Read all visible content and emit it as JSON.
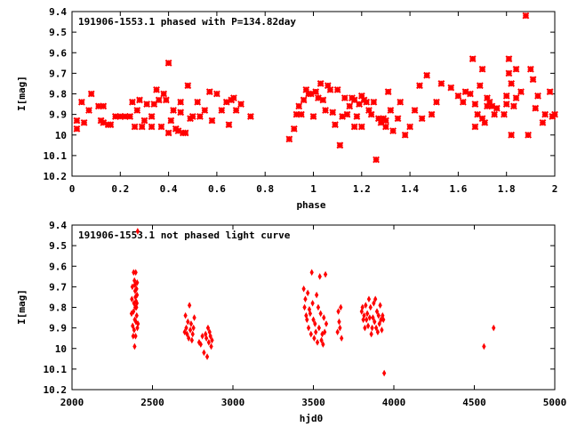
{
  "chart_data": [
    {
      "type": "scatter",
      "title": "191906-1553.1 phased with P=134.82day",
      "xlabel": "phase",
      "ylabel": "I[mag]",
      "xlim": [
        0,
        2
      ],
      "ylim": [
        10.2,
        9.4
      ],
      "y_inverted": true,
      "grid": false,
      "marker_color": "#ff0000",
      "xticks": [
        "0",
        "0.2",
        "0.4",
        "0.6",
        "0.8",
        "1",
        "1.2",
        "1.4",
        "1.6",
        "1.8",
        "2"
      ],
      "yticks": [
        "9.4",
        "9.5",
        "9.6",
        "9.7",
        "9.8",
        "9.9",
        "10",
        "10.1",
        "10.2"
      ],
      "series": [
        {
          "x": [
            0.02,
            0.02,
            0.04,
            0.05,
            0.07,
            0.08,
            0.11,
            0.12,
            0.13,
            0.13,
            0.15,
            0.16,
            0.18,
            0.2,
            0.22,
            0.24,
            0.25,
            0.26,
            0.27,
            0.28,
            0.29,
            0.3,
            0.31,
            0.33,
            0.33,
            0.34,
            0.35,
            0.36,
            0.37,
            0.38,
            0.39,
            0.4,
            0.4,
            0.41,
            0.42,
            0.43,
            0.44,
            0.45,
            0.45,
            0.46,
            0.47,
            0.48,
            0.49,
            0.5,
            0.52,
            0.53,
            0.55,
            0.57,
            0.58,
            0.6,
            0.62,
            0.64,
            0.65,
            0.66,
            0.67,
            0.68,
            0.7,
            0.74,
            0.9,
            0.92,
            0.93,
            0.94,
            0.95,
            0.96,
            0.97,
            0.98,
            0.99,
            1.0,
            1.01,
            1.02,
            1.03,
            1.04,
            1.05,
            1.06,
            1.07,
            1.08,
            1.09,
            1.1,
            1.11,
            1.12,
            1.13,
            1.14,
            1.15,
            1.16,
            1.17,
            1.17,
            1.18,
            1.19,
            1.2,
            1.2,
            1.21,
            1.22,
            1.23,
            1.24,
            1.25,
            1.26,
            1.27,
            1.28,
            1.29,
            1.3,
            1.3,
            1.31,
            1.32,
            1.33,
            1.35,
            1.36,
            1.38,
            1.4,
            1.42,
            1.44,
            1.45,
            1.47,
            1.49,
            1.51,
            1.53,
            1.57,
            1.6,
            1.62,
            1.63,
            1.65,
            1.66,
            1.67,
            1.67,
            1.68,
            1.69,
            1.7,
            1.7,
            1.71,
            1.72,
            1.72,
            1.73,
            1.74,
            1.75,
            1.76,
            1.79,
            1.8,
            1.8,
            1.81,
            1.81,
            1.82,
            1.82,
            1.83,
            1.84,
            1.84,
            1.86,
            1.88,
            1.89,
            1.9,
            1.91,
            1.92,
            1.93,
            1.95,
            1.96,
            1.98,
            1.99,
            2.0
          ],
          "y": [
            9.93,
            9.97,
            9.84,
            9.94,
            9.88,
            9.8,
            9.86,
            9.93,
            9.94,
            9.86,
            9.95,
            9.95,
            9.91,
            9.91,
            9.91,
            9.91,
            9.84,
            9.96,
            9.88,
            9.83,
            9.96,
            9.93,
            9.85,
            9.91,
            9.96,
            9.85,
            9.78,
            9.83,
            9.96,
            9.8,
            9.83,
            9.65,
            9.99,
            9.93,
            9.88,
            9.97,
            9.98,
            9.84,
            9.89,
            9.99,
            9.99,
            9.76,
            9.92,
            9.91,
            9.84,
            9.91,
            9.88,
            9.79,
            9.93,
            9.8,
            9.88,
            9.84,
            9.95,
            9.83,
            9.82,
            9.88,
            9.85,
            9.91,
            10.02,
            9.97,
            9.9,
            9.86,
            9.9,
            9.83,
            9.78,
            9.8,
            9.8,
            9.91,
            9.79,
            9.82,
            9.75,
            9.83,
            9.88,
            9.76,
            9.78,
            9.89,
            9.95,
            9.78,
            10.05,
            9.91,
            9.82,
            9.9,
            9.86,
            9.82,
            9.83,
            9.96,
            9.91,
            9.85,
            9.81,
            9.96,
            9.83,
            9.84,
            9.88,
            9.9,
            9.84,
            10.12,
            9.92,
            9.94,
            9.92,
            9.93,
            9.96,
            9.79,
            9.88,
            9.98,
            9.92,
            9.84,
            10.0,
            9.96,
            9.88,
            9.76,
            9.92,
            9.71,
            9.9,
            9.84,
            9.75,
            9.77,
            9.81,
            9.84,
            9.79,
            9.8,
            9.63,
            9.85,
            9.96,
            9.9,
            9.76,
            9.68,
            9.92,
            9.94,
            9.86,
            9.82,
            9.84,
            9.86,
            9.9,
            9.87,
            9.9,
            9.81,
            9.85,
            9.7,
            9.63,
            9.75,
            10.0,
            9.86,
            9.82,
            9.68,
            9.79,
            9.42,
            10.0,
            9.68,
            9.73,
            9.87,
            9.81,
            9.94,
            9.9,
            9.79,
            9.91,
            9.9
          ]
        }
      ]
    },
    {
      "type": "scatter",
      "title": "191906-1553.1 not phased light curve",
      "xlabel": "hjd0",
      "ylabel": "I[mag]",
      "xlim": [
        2000,
        5000
      ],
      "ylim": [
        10.2,
        9.4
      ],
      "y_inverted": true,
      "grid": false,
      "marker_color": "#ff0000",
      "xticks": [
        "2000",
        "2500",
        "3000",
        "3500",
        "4000",
        "4500",
        "5000"
      ],
      "yticks": [
        "9.4",
        "9.5",
        "9.6",
        "9.7",
        "9.8",
        "9.9",
        "10",
        "10.1",
        "10.2"
      ],
      "series": [
        {
          "x": [
            2370,
            2372,
            2375,
            2377,
            2380,
            2382,
            2383,
            2385,
            2386,
            2388,
            2389,
            2390,
            2391,
            2392,
            2393,
            2394,
            2395,
            2396,
            2397,
            2398,
            2400,
            2401,
            2402,
            2403,
            2404,
            2405,
            2406,
            2408,
            2410,
            2700,
            2705,
            2710,
            2715,
            2720,
            2725,
            2730,
            2735,
            2740,
            2745,
            2750,
            2755,
            2760,
            2790,
            2800,
            2810,
            2820,
            2830,
            2835,
            2840,
            2845,
            2850,
            2855,
            2860,
            2865,
            2870,
            3440,
            3445,
            3450,
            3455,
            3460,
            3465,
            3470,
            3475,
            3480,
            3485,
            3490,
            3495,
            3500,
            3505,
            3510,
            3515,
            3520,
            3525,
            3530,
            3535,
            3540,
            3545,
            3550,
            3555,
            3560,
            3565,
            3570,
            3575,
            3580,
            3650,
            3655,
            3660,
            3665,
            3670,
            3675,
            3800,
            3805,
            3810,
            3815,
            3820,
            3825,
            3830,
            3835,
            3840,
            3845,
            3850,
            3855,
            3860,
            3865,
            3870,
            3875,
            3880,
            3885,
            3890,
            3895,
            3900,
            3905,
            3910,
            3915,
            3920,
            3925,
            3930,
            3935,
            3940,
            4560,
            4620
          ],
          "y": [
            9.83,
            9.76,
            9.7,
            9.89,
            9.94,
            9.82,
            9.63,
            9.78,
            9.91,
            9.67,
            9.99,
            9.86,
            9.69,
            9.72,
            9.8,
            9.75,
            9.94,
            9.63,
            9.87,
            9.77,
            9.8,
            9.71,
            9.84,
            9.78,
            9.74,
            9.68,
            9.9,
            9.43,
            9.88,
            9.92,
            9.84,
            9.9,
            9.93,
            9.87,
            9.95,
            9.79,
            9.91,
            9.88,
            9.96,
            9.93,
            9.9,
            9.85,
            9.97,
            9.98,
            9.94,
            10.02,
            9.93,
            9.95,
            10.04,
            9.9,
            9.97,
            9.92,
            9.94,
            9.99,
            9.96,
            9.71,
            9.8,
            9.76,
            9.84,
            9.86,
            9.73,
            9.9,
            9.81,
            9.83,
            9.93,
            9.63,
            9.78,
            9.86,
            9.95,
            9.88,
            9.92,
            9.74,
            9.97,
            9.8,
            9.9,
            9.65,
            9.83,
            9.96,
            9.93,
            9.98,
            9.85,
            9.92,
            9.64,
            9.88,
            9.92,
            9.82,
            9.87,
            9.9,
            9.8,
            9.95,
            9.82,
            9.8,
            9.86,
            9.84,
            9.9,
            9.79,
            9.86,
            9.83,
            9.89,
            9.76,
            9.85,
            9.8,
            9.93,
            9.9,
            9.85,
            9.78,
            9.87,
            9.76,
            9.9,
            9.82,
            9.92,
            9.84,
            9.88,
            9.79,
            9.86,
            9.91,
            9.84,
            9.86,
            10.12,
            9.99,
            9.9
          ]
        }
      ]
    }
  ]
}
